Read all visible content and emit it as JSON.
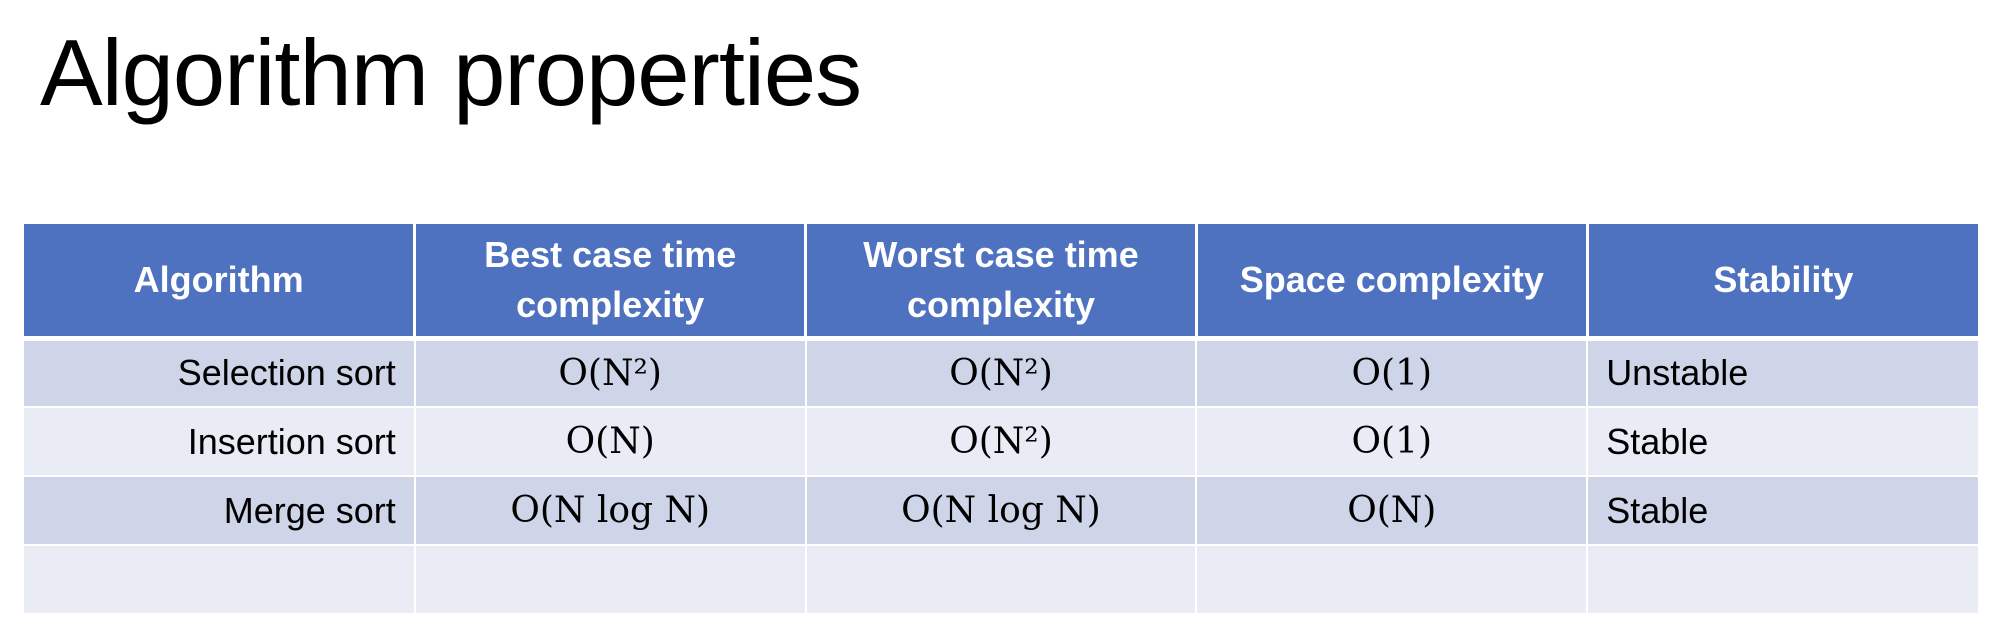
{
  "slide": {
    "title": "Algorithm properties"
  },
  "table": {
    "headers": [
      "Algorithm",
      "Best case time complexity",
      "Worst case time complexity",
      "Space complexity",
      "Stability"
    ],
    "rows": [
      {
        "algorithm": "Selection sort",
        "best": "O(N²)",
        "worst": "O(N²)",
        "space": "O(1)",
        "stability": "Unstable"
      },
      {
        "algorithm": "Insertion sort",
        "best": "O(N)",
        "worst": "O(N²)",
        "space": "O(1)",
        "stability": "Stable"
      },
      {
        "algorithm": "Merge sort",
        "best": "O(N log N)",
        "worst": "O(N log N)",
        "space": "O(N)",
        "stability": "Stable"
      }
    ]
  },
  "colors": {
    "header_bg": "#4f72c0",
    "row_odd_bg": "#cfd5e8",
    "row_even_bg": "#e9ebf5"
  }
}
